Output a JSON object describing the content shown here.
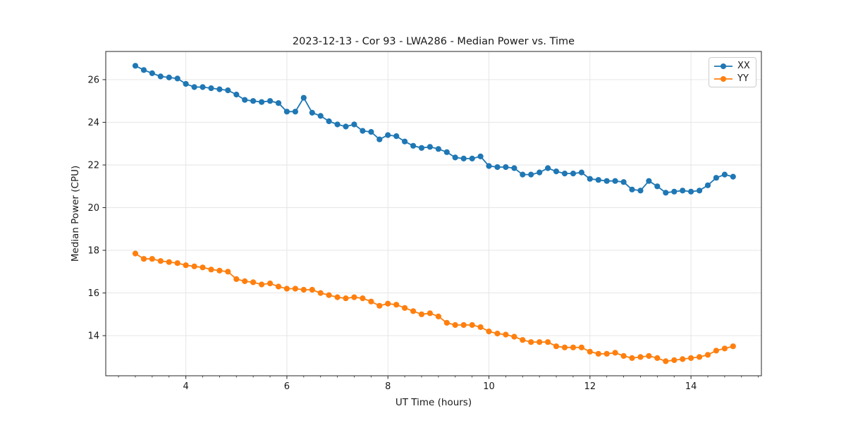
{
  "chart_data": {
    "type": "line",
    "title": "2023-12-13 - Cor 93 - LWA286 - Median Power vs. Time",
    "xlabel": "UT Time (hours)",
    "ylabel": "Median Power (CPU)",
    "xlim": [
      2.414,
      15.394
    ],
    "ylim": [
      12.12,
      27.32
    ],
    "xticks": [
      4,
      6,
      8,
      10,
      12,
      14
    ],
    "yticks": [
      14,
      16,
      18,
      20,
      22,
      24,
      26
    ],
    "x_minor_step": 0.33333,
    "grid": true,
    "legend_position": "upper right",
    "marker": "circle",
    "x": [
      3.0,
      3.167,
      3.333,
      3.5,
      3.667,
      3.833,
      4.0,
      4.167,
      4.333,
      4.5,
      4.667,
      4.833,
      5.0,
      5.167,
      5.333,
      5.5,
      5.667,
      5.833,
      6.0,
      6.167,
      6.333,
      6.5,
      6.667,
      6.833,
      7.0,
      7.167,
      7.333,
      7.5,
      7.667,
      7.833,
      8.0,
      8.167,
      8.333,
      8.5,
      8.667,
      8.833,
      9.0,
      9.167,
      9.333,
      9.5,
      9.667,
      9.833,
      10.0,
      10.167,
      10.333,
      10.5,
      10.667,
      10.833,
      11.0,
      11.167,
      11.333,
      11.5,
      11.667,
      11.833,
      12.0,
      12.167,
      12.333,
      12.5,
      12.667,
      12.833,
      13.0,
      13.167,
      13.333,
      13.5,
      13.667,
      13.833,
      14.0,
      14.167,
      14.333,
      14.5,
      14.667,
      14.833
    ],
    "series": [
      {
        "name": "XX",
        "color": "#1f77b4",
        "values": [
          26.65,
          26.45,
          26.3,
          26.15,
          26.1,
          26.05,
          25.8,
          25.65,
          25.65,
          25.6,
          25.55,
          25.5,
          25.3,
          25.05,
          25.0,
          24.95,
          25.0,
          24.9,
          24.5,
          24.5,
          25.15,
          24.45,
          24.3,
          24.05,
          23.9,
          23.8,
          23.9,
          23.6,
          23.55,
          23.2,
          23.4,
          23.35,
          23.1,
          22.9,
          22.8,
          22.85,
          22.75,
          22.6,
          22.35,
          22.3,
          22.3,
          22.4,
          21.95,
          21.9,
          21.9,
          21.85,
          21.55,
          21.55,
          21.65,
          21.85,
          21.7,
          21.6,
          21.6,
          21.65,
          21.35,
          21.3,
          21.25,
          21.25,
          21.2,
          20.85,
          20.8,
          21.25,
          21.0,
          20.7,
          20.75,
          20.8,
          20.75,
          20.8,
          21.05,
          21.4,
          21.55,
          21.45
        ]
      },
      {
        "name": "YY",
        "color": "#ff7f0e",
        "values": [
          17.85,
          17.6,
          17.6,
          17.5,
          17.45,
          17.4,
          17.3,
          17.25,
          17.2,
          17.1,
          17.05,
          17.0,
          16.65,
          16.55,
          16.5,
          16.4,
          16.45,
          16.3,
          16.2,
          16.2,
          16.15,
          16.15,
          16.0,
          15.9,
          15.8,
          15.75,
          15.8,
          15.75,
          15.6,
          15.4,
          15.5,
          15.45,
          15.3,
          15.15,
          15.0,
          15.05,
          14.9,
          14.6,
          14.5,
          14.5,
          14.5,
          14.4,
          14.2,
          14.1,
          14.05,
          13.95,
          13.8,
          13.7,
          13.7,
          13.7,
          13.5,
          13.45,
          13.45,
          13.45,
          13.25,
          13.15,
          13.15,
          13.2,
          13.05,
          12.95,
          13.0,
          13.05,
          12.95,
          12.8,
          12.85,
          12.9,
          12.95,
          13.0,
          13.1,
          13.3,
          13.4,
          13.5
        ]
      }
    ]
  },
  "legend": {
    "items": [
      {
        "label": "XX"
      },
      {
        "label": "YY"
      }
    ]
  }
}
